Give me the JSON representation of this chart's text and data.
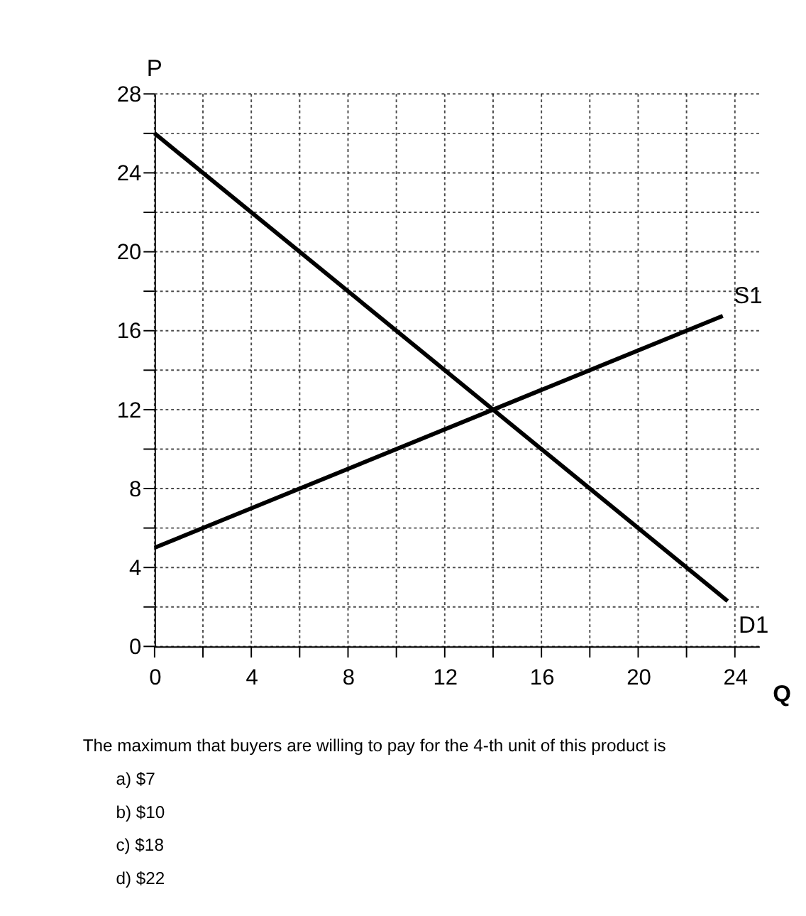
{
  "chart_data": {
    "type": "line",
    "xlabel": "Q",
    "ylabel": "P",
    "series": [
      {
        "name": "S1",
        "color": "#000000",
        "x": [
          0,
          23.5
        ],
        "values": [
          5,
          16.75
        ]
      },
      {
        "name": "D1",
        "color": "#000000",
        "x": [
          0,
          23.7
        ],
        "values": [
          26,
          2.3
        ]
      }
    ],
    "xlim": [
      0,
      25
    ],
    "ylim": [
      0,
      28
    ],
    "xticks": [
      0,
      {
        "value": 2,
        "label": null
      },
      4,
      {
        "value": 6,
        "label": null
      },
      8,
      {
        "value": 10,
        "label": null
      },
      12,
      {
        "value": 14,
        "label": null
      },
      16,
      {
        "value": 18,
        "label": null
      },
      20,
      {
        "value": 22,
        "label": null
      },
      24
    ],
    "yticks": [
      0,
      {
        "value": 2,
        "label": null
      },
      4,
      {
        "value": 6,
        "label": null
      },
      8,
      {
        "value": 10,
        "label": null
      },
      12,
      {
        "value": 14,
        "label": null
      },
      16,
      {
        "value": 18,
        "label": null
      },
      20,
      {
        "value": 22,
        "label": null
      },
      24,
      {
        "value": 26,
        "label": null
      },
      28
    ],
    "grid": true,
    "line_style": "solid",
    "marker": "none",
    "legend": false,
    "annotations": [
      "The maximum that buyers are willing to pay for the 4-th unit of this product is",
      "a) $7",
      "b) $10",
      "c) $18",
      "d) $22"
    ]
  }
}
